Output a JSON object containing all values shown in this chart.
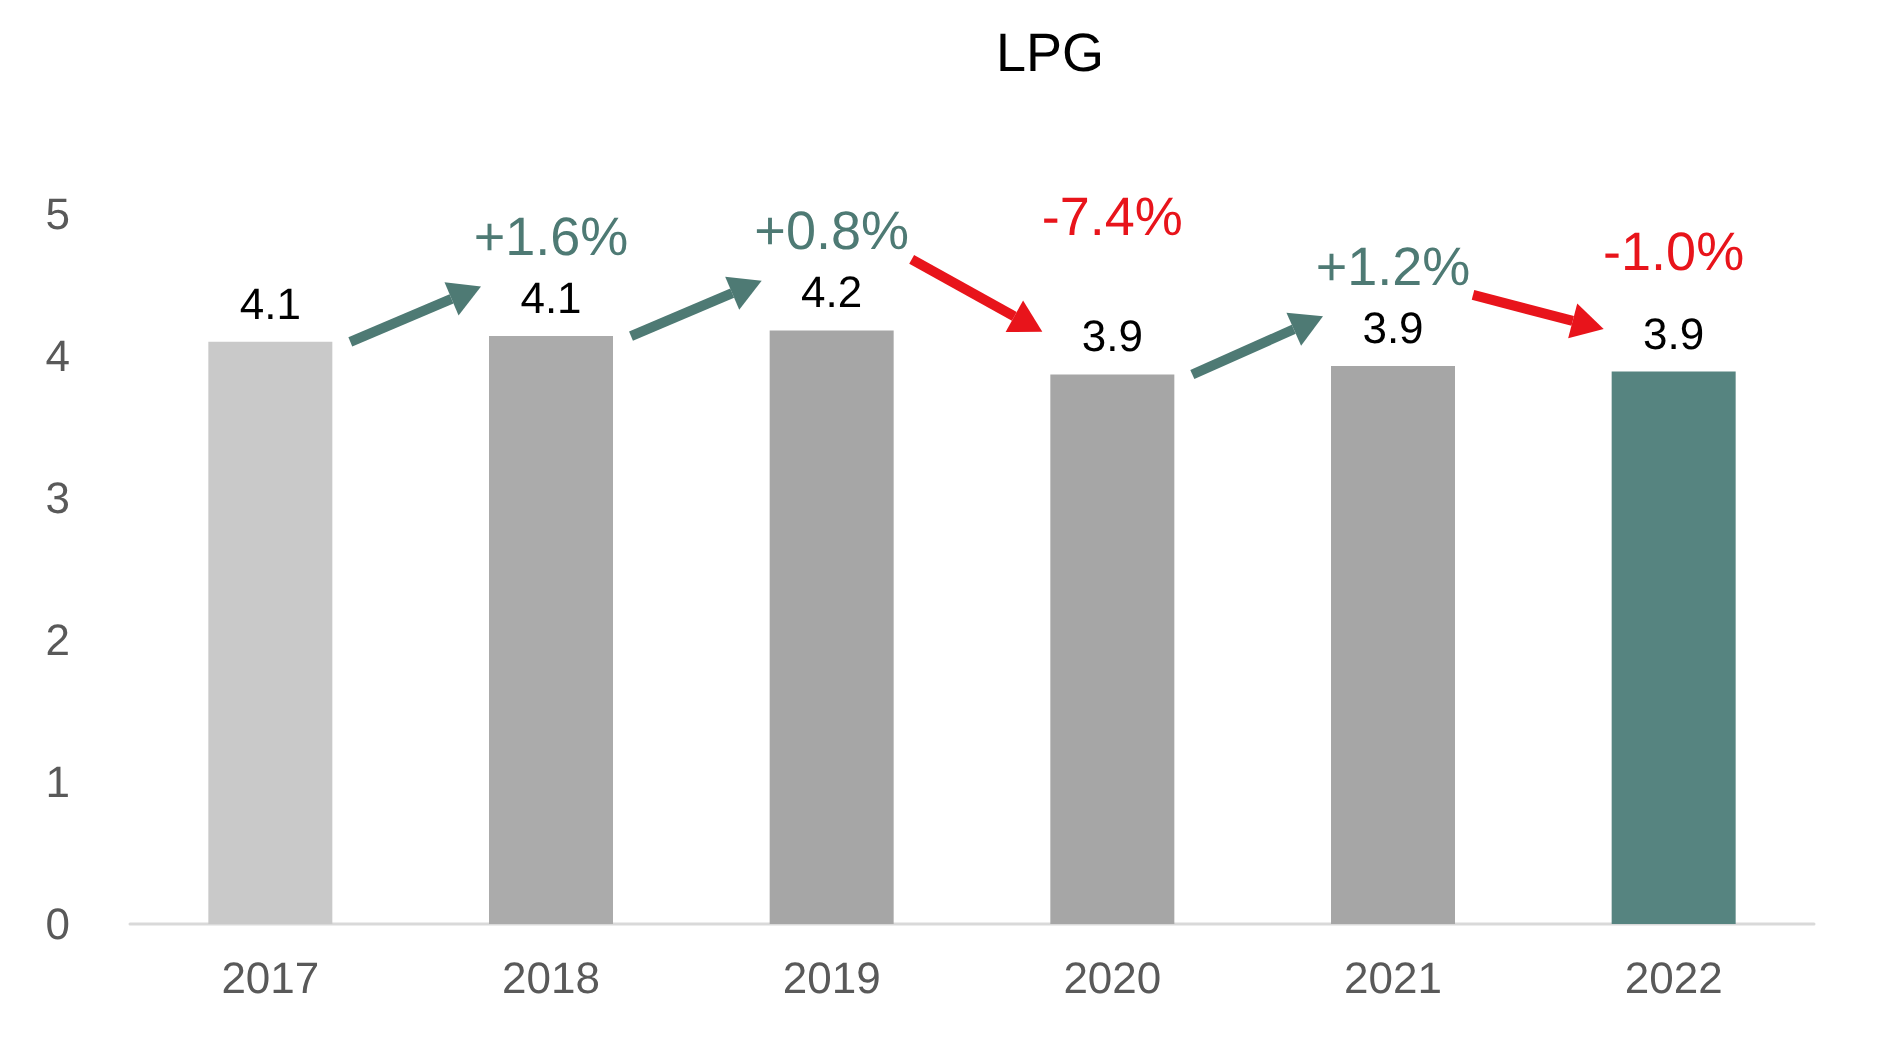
{
  "chart_data": {
    "type": "bar",
    "title": "LPG",
    "categories": [
      "2017",
      "2018",
      "2019",
      "2020",
      "2021",
      "2022"
    ],
    "values": [
      4.1,
      4.14,
      4.18,
      3.87,
      3.93,
      3.89
    ],
    "value_labels": [
      "4.1",
      "4.1",
      "4.2",
      "3.9",
      "3.9",
      "3.9"
    ],
    "colors": [
      "#c9c9c9",
      "#ababab",
      "#a6a6a6",
      "#a6a6a6",
      "#a6a6a6",
      "#568480"
    ],
    "ylim": [
      0,
      5
    ],
    "yticks": [
      0,
      1,
      2,
      3,
      4,
      5
    ],
    "grid": false,
    "annotations": [
      "+1.6%",
      "+0.8%",
      "-7.4%",
      "+1.2%",
      "-1.0%"
    ]
  }
}
